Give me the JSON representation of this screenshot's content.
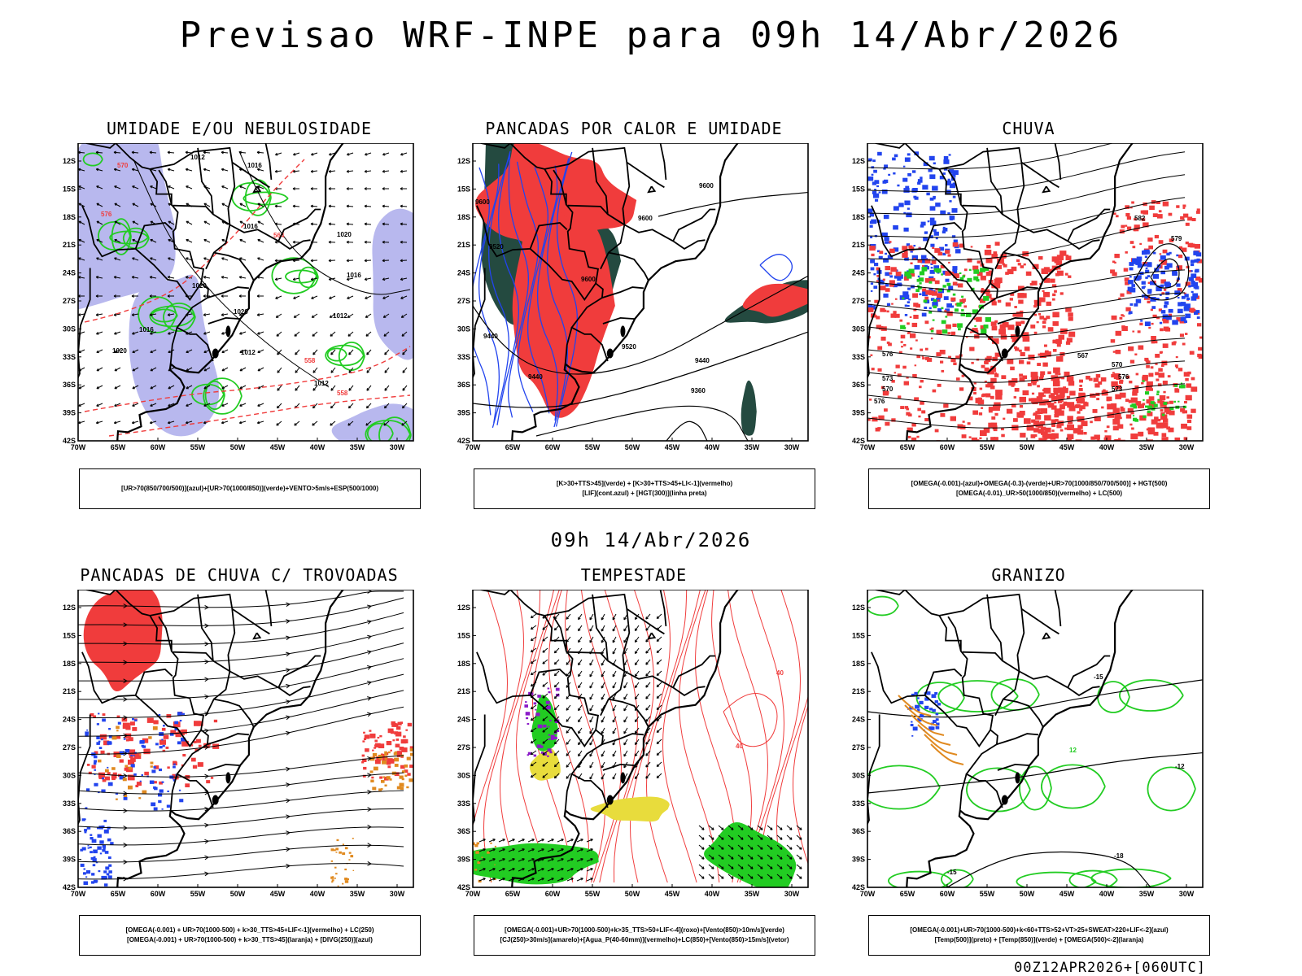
{
  "header": {
    "title": "Previsao WRF-INPE  para 09h 14/Abr/2026",
    "subtitle": "09h 14/Abr/2026",
    "run_info": "00Z12APR2026+[060UTC]"
  },
  "axes": {
    "lat_labels": [
      "12S",
      "15S",
      "18S",
      "21S",
      "24S",
      "27S",
      "30S",
      "33S",
      "36S",
      "39S",
      "42S"
    ],
    "lon_labels": [
      "70W",
      "65W",
      "60W",
      "55W",
      "50W",
      "45W",
      "40W",
      "35W",
      "30W"
    ]
  },
  "colors": {
    "red": "#f03c3c",
    "green": "#22cc22",
    "blue": "#2244ee",
    "lavender": "#b8b8ee",
    "darkgreen": "#244a40",
    "yellow": "#e8dc3c",
    "orange": "#e08a20",
    "purple": "#8a1ac8"
  },
  "panels": [
    {
      "title": "UMIDADE E/OU NEBULOSIDADE",
      "legend": [
        "[UR>70(850/700/500)](azul)+[UR>70(1000/850)](verde)+VENTO>5m/s+ESP(500/1000)"
      ],
      "labels": [
        "1012",
        "1016",
        "1016",
        "1020",
        "1020",
        "1020",
        "1016",
        "1012",
        "1012",
        "1012",
        "1016",
        "1020",
        "570",
        "576",
        "564",
        "558",
        "558"
      ]
    },
    {
      "title": "PANCADAS POR CALOR E UMIDADE",
      "legend": [
        "[K>30+TTS>45](verde) + [K>30+TTS>45+LI<-1](vermelho)",
        "[LIF](cont.azul) + [HGT(300)](linha preta)"
      ],
      "labels": [
        "9600",
        "9600",
        "9600",
        "9600",
        "9520",
        "9440",
        "9520",
        "9440",
        "9440",
        "9360"
      ]
    },
    {
      "title": "CHUVA",
      "legend": [
        "[OMEGA(-0.001)-(azul)+OMEGA(-0.3)-(verde)+UR>70(1000/850/700/500)] + HGT(500)",
        "[OMEGA(-0.01)_UR>50(1000/850)(vermelho) + LC(500)"
      ],
      "labels": [
        "582",
        "579",
        "576",
        "573",
        "570",
        "567",
        "576",
        "573",
        "570",
        "576"
      ]
    },
    {
      "title": "PANCADAS DE CHUVA C/ TROVOADAS",
      "legend": [
        "[OMEGA(-0.001) + UR>70(1000-500) + k>30_TTS>45+LIF<-1](vermelho) + LC(250)",
        "[OMEGA(-0.001) + UR>70(1000-500) + k>30_TTS>45](laranja) + [DIVG(250)](azul)"
      ],
      "labels": []
    },
    {
      "title": "TEMPESTADE",
      "legend": [
        "[OMEGA(-0.001)+UR>70(1000-500)+k>35_TTS>50+LIF<-4](roxo)+[Vento(850)>10m/s](verde)",
        "[CJ(250)>30m/s](amarelo)+[Agua_P(40-60mm)](vermelho)+LC(850)+[Vento(850)>15m/s](vetor)"
      ],
      "labels": [
        "40",
        "40"
      ]
    },
    {
      "title": "GRANIZO",
      "legend": [
        "[OMEGA(-0.001)+UR>70(1000-500)+k<60+TTS>52+VT>25+SWEAT>220+LIF<-2](azul)",
        "[Temp(500)](preto) + [Temp(850)](verde) + [OMEGA(500)<-2](laranja)"
      ],
      "labels": [
        "-18",
        "-15",
        "-15",
        "-12",
        "12"
      ]
    }
  ]
}
